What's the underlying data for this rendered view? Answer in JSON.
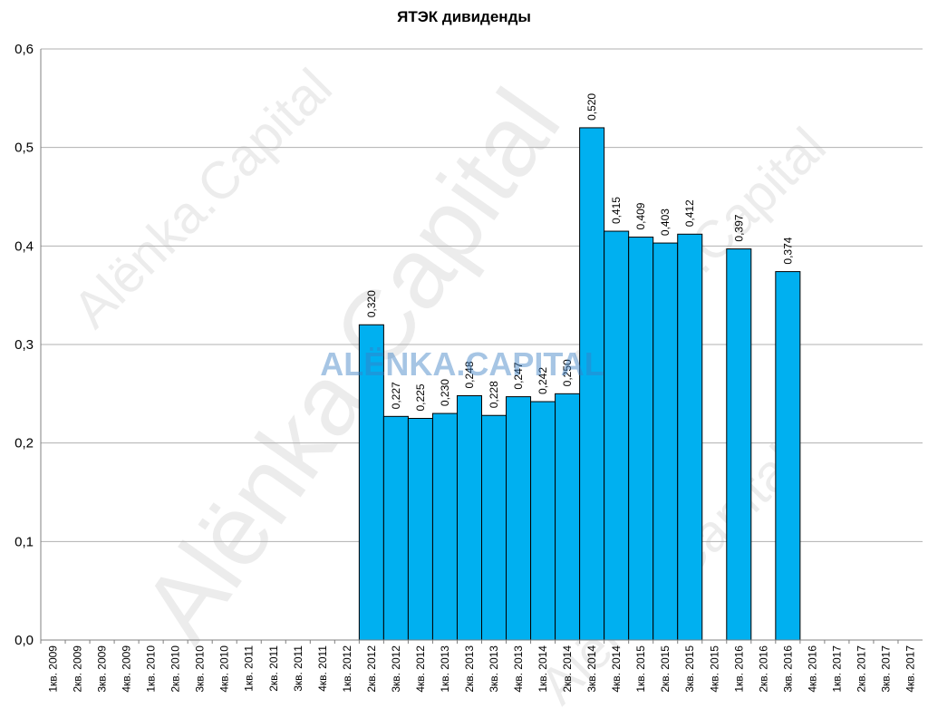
{
  "chart_data": {
    "type": "bar",
    "title": "ЯТЭК дивиденды",
    "xlabel": "",
    "ylabel": "",
    "ylim": [
      0,
      0.6
    ],
    "yticks": [
      "0,0",
      "0,1",
      "0,2",
      "0,3",
      "0,4",
      "0,5",
      "0,6"
    ],
    "grid": true,
    "bar_color": "#00b0f0",
    "categories": [
      "1кв. 2009",
      "2кв. 2009",
      "3кв. 2009",
      "4кв. 2009",
      "1кв. 2010",
      "2кв. 2010",
      "3кв. 2010",
      "4кв. 2010",
      "1кв. 2011",
      "2кв. 2011",
      "3кв. 2011",
      "4кв. 2011",
      "1кв. 2012",
      "2кв. 2012",
      "3кв. 2012",
      "4кв. 2012",
      "1кв. 2013",
      "2кв. 2013",
      "3кв. 2013",
      "4кв. 2013",
      "1кв. 2014",
      "2кв. 2014",
      "3кв. 2014",
      "4кв. 2014",
      "1кв. 2015",
      "2кв. 2015",
      "3кв. 2015",
      "4кв. 2015",
      "1кв. 2016",
      "2кв. 2016",
      "3кв. 2016",
      "4кв. 2016",
      "1кв. 2017",
      "2кв. 2017",
      "3кв. 2017",
      "4кв. 2017"
    ],
    "values": [
      null,
      null,
      null,
      null,
      null,
      null,
      null,
      null,
      null,
      null,
      null,
      null,
      null,
      0.32,
      0.227,
      0.225,
      0.23,
      0.248,
      0.228,
      0.247,
      0.242,
      0.25,
      0.52,
      0.415,
      0.409,
      0.403,
      0.412,
      null,
      0.397,
      null,
      0.374,
      null,
      null,
      null,
      null,
      null
    ],
    "data_labels": [
      "",
      "",
      "",
      "",
      "",
      "",
      "",
      "",
      "",
      "",
      "",
      "",
      "",
      "0,320",
      "0,227",
      "0,225",
      "0,230",
      "0,248",
      "0,228",
      "0,247",
      "0,242",
      "0,250",
      "0,520",
      "0,415",
      "0,409",
      "0,403",
      "0,412",
      "",
      "0,397",
      "",
      "0,374",
      "",
      "",
      "",
      "",
      ""
    ]
  },
  "watermarks": {
    "small": "Alёnka.Capital",
    "large": "Alёnka.Capital",
    "center": "ALЁNKA.CAPITAL"
  }
}
